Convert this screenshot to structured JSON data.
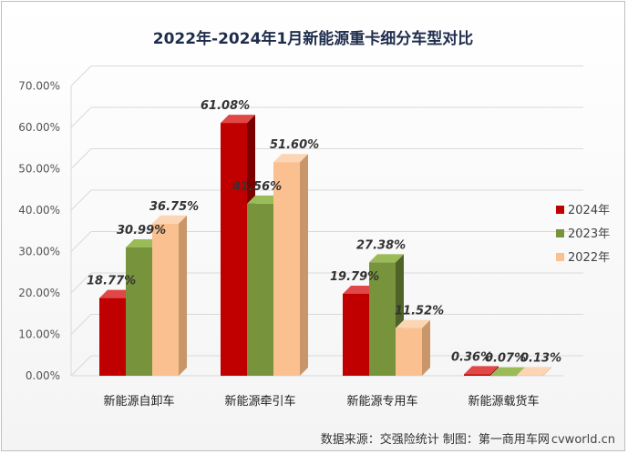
{
  "chart_data": {
    "type": "bar",
    "title": "2022年-2024年1月新能源重卡细分车型对比",
    "categories": [
      "新能源自卸车",
      "新能源牵引车",
      "新能源专用车",
      "新能源载货车"
    ],
    "series": [
      {
        "name": "2024年",
        "values": [
          18.77,
          61.08,
          19.79,
          0.36
        ],
        "labels": [
          "18.77%",
          "61.08%",
          "19.79%",
          "0.36%"
        ]
      },
      {
        "name": "2023年",
        "values": [
          30.99,
          41.56,
          27.38,
          0.07
        ],
        "labels": [
          "30.99%",
          "41.56%",
          "27.38%",
          "0.07%"
        ]
      },
      {
        "name": "2022年",
        "values": [
          36.75,
          51.6,
          11.52,
          0.13
        ],
        "labels": [
          "36.75%",
          "51.60%",
          "11.52%",
          "0.13%"
        ]
      }
    ],
    "y_ticks": [
      "0.00%",
      "10.00%",
      "20.00%",
      "30.00%",
      "40.00%",
      "50.00%",
      "60.00%",
      "70.00%"
    ],
    "ylim": [
      0,
      70
    ],
    "grid": true,
    "legend_position": "right",
    "xlabel": "",
    "ylabel": ""
  },
  "colors": {
    "2024": {
      "front": "#c00000",
      "side": "#7a0000",
      "top": "#e04848"
    },
    "2023": {
      "front": "#77933c",
      "side": "#4f6228",
      "top": "#9bbb59"
    },
    "2022": {
      "front": "#fac090",
      "side": "#c9966a",
      "top": "#fcd5b4"
    },
    "grid": "#d9d9d9",
    "axis_text": "#555555"
  },
  "footer": {
    "source": "数据来源：交强险统计  制图：第一商用车网",
    "site": "cvworld.cn"
  }
}
